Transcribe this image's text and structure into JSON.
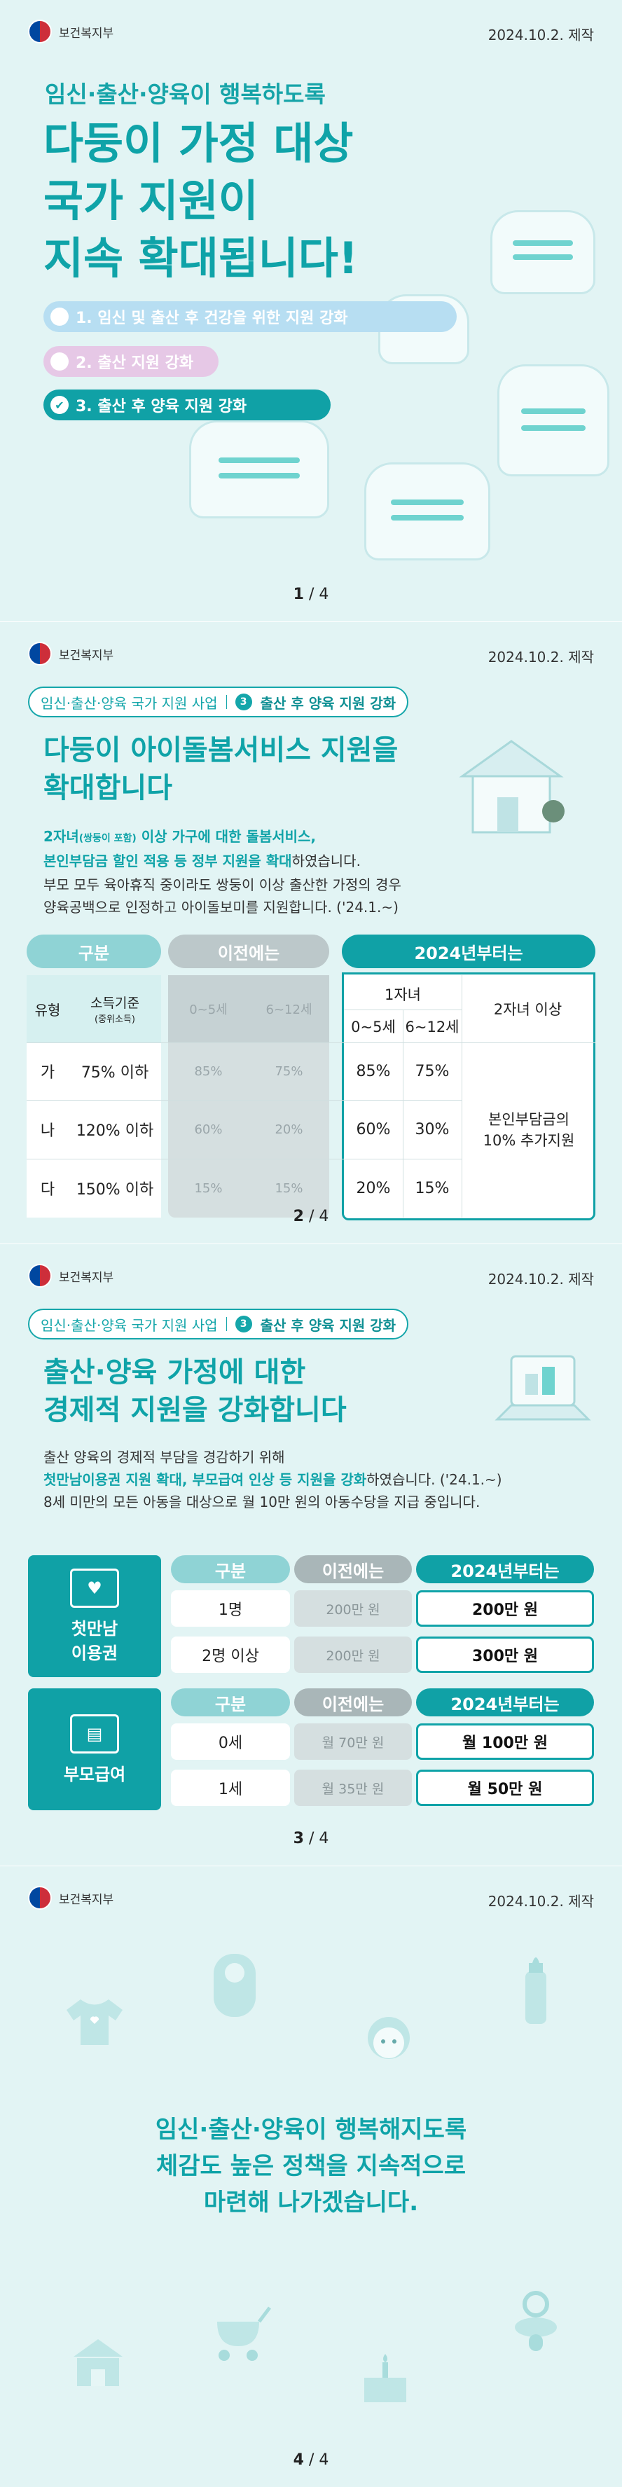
{
  "ministry": "보건복지부",
  "date": "2024.10.2. 제작",
  "page1": {
    "subtitle": "임신·출산·양육이 행복하도록",
    "title_lines": [
      "다둥이 가정 대상",
      "국가 지원이",
      "지속 확대됩니다!"
    ],
    "items": [
      "1. 임신 및 출산 후 건강을 위한 지원 강화",
      "2. 출산 지원 강화",
      "3. 출산 후 양육 지원 강화"
    ],
    "page_current": "1",
    "page_total": "/ 4"
  },
  "page2": {
    "crumb_program": "임신·출산·양육 국가 지원 사업",
    "crumb_num": "3",
    "crumb_section": "출산 후 양육 지원 강화",
    "title_lines": [
      "다둥이 아이돌봄서비스 지원을",
      "확대합니다"
    ],
    "body_1a": "2자녀",
    "body_1b": "(쌍둥이 포함)",
    "body_1c": " 이상 가구에 대한 돌봄서비스,",
    "body_2": "본인부담금 할인 적용 등 정부 지원을 확대",
    "body_2b": "하였습니다.",
    "body_3": "부모 모두 육아휴직 중이라도 쌍둥이 이상 출산한 가정의 경우",
    "body_4": "양육공백으로 인정하고 아이돌보미를 지원합니다. ('24.1.~)",
    "table": {
      "hdr_category": "구분",
      "hdr_before": "이전에는",
      "hdr_after": "2024년부터는",
      "col_type": "유형",
      "col_income": "소득기준",
      "col_income_sub": "(중위소득)",
      "col_age1": "0~5세",
      "col_age2": "6~12세",
      "one_child": "1자녀",
      "two_plus": "2자녀 이상",
      "rows": [
        {
          "type": "가",
          "income": "75% 이하",
          "b1": "85%",
          "b2": "75%",
          "a1": "85%",
          "a2": "75%"
        },
        {
          "type": "나",
          "income": "120% 이하",
          "b1": "60%",
          "b2": "20%",
          "a1": "60%",
          "a2": "30%"
        },
        {
          "type": "다",
          "income": "150% 이하",
          "b1": "15%",
          "b2": "15%",
          "a1": "20%",
          "a2": "15%"
        }
      ],
      "two_plus_value": "본인부담금의 10% 추가지원"
    },
    "page_current": "2",
    "page_total": "/ 4"
  },
  "page3": {
    "crumb_program": "임신·출산·양육 국가 지원 사업",
    "crumb_num": "3",
    "crumb_section": "출산 후 양육 지원 강화",
    "title_lines": [
      "출산·양육 가정에 대한",
      "경제적 지원을 강화합니다"
    ],
    "body_1": "출산 양육의 경제적 부담을 경감하기 위해",
    "body_2": "첫만남이용권 지원 확대, 부모급여 인상 등 지원을 강화",
    "body_2b": "하였습니다. ('24.1.~)",
    "body_3": "8세 미만의 모든 아동을 대상으로 월 10만 원의 아동수당을 지급 중입니다.",
    "voucher": {
      "label_line1": "첫만남",
      "label_line2": "이용권",
      "hdr_category": "구분",
      "hdr_before": "이전에는",
      "hdr_after": "2024년부터는",
      "rows": [
        {
          "cat": "1명",
          "before": "200만 원",
          "after": "200만 원"
        },
        {
          "cat": "2명 이상",
          "before": "200만 원",
          "after": "300만 원"
        }
      ]
    },
    "parent": {
      "label": "부모급여",
      "hdr_category": "구분",
      "hdr_before": "이전에는",
      "hdr_after": "2024년부터는",
      "rows": [
        {
          "cat": "0세",
          "before": "월 70만 원",
          "after": "월 100만 원"
        },
        {
          "cat": "1세",
          "before": "월 35만 원",
          "after": "월 50만 원"
        }
      ]
    },
    "page_current": "3",
    "page_total": "/ 4"
  },
  "page4": {
    "closing_lines": [
      "임신·출산·양육이 행복해지도록",
      "체감도 높은 정책을 지속적으로",
      "마련해 나가겠습니다."
    ],
    "page_current": "4",
    "page_total": "/ 4"
  },
  "colors": {
    "accent": "#0fa3a8",
    "background": "#e2f4f4",
    "grey_col": "#d5dfe0"
  }
}
